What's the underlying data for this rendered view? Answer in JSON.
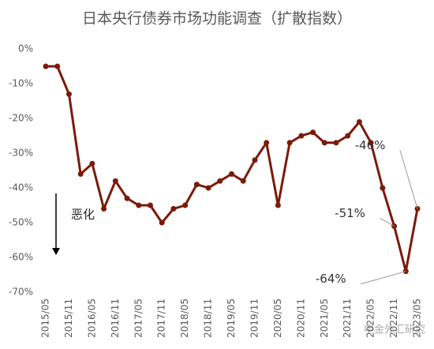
{
  "chart_data": {
    "type": "line",
    "title": "日本央行债券市场功能调查（扩散指数）",
    "categories": [
      "2015/05",
      null,
      "2015/11",
      null,
      "2016/05",
      null,
      "2016/11",
      null,
      "2017/05",
      null,
      "2017/11",
      null,
      "2018/05",
      null,
      "2018/11",
      null,
      "2019/05",
      null,
      "2019/11",
      null,
      "2020/05",
      null,
      "2020/11",
      null,
      "2021/05",
      null,
      "2021/11",
      null,
      "2022/05",
      null,
      "2022/11",
      null,
      "2023/05"
    ],
    "series": [
      {
        "name": "扩散指数",
        "color": "#7b1a0a",
        "values": [
          -5,
          -5,
          -13,
          -36,
          -33,
          -46,
          -38,
          -43,
          -45,
          -45,
          -50,
          -46,
          -45,
          -39,
          -40,
          -38,
          -36,
          -38,
          -32,
          -27,
          -45,
          -27,
          -25,
          -24,
          -27,
          -27,
          -25,
          -21,
          -27,
          -40,
          -51,
          -64,
          -46
        ],
        "value_labels": [
          null,
          null,
          null,
          null,
          null,
          null,
          null,
          null,
          null,
          null,
          null,
          null,
          null,
          null,
          null,
          null,
          null,
          null,
          null,
          null,
          null,
          null,
          null,
          null,
          null,
          null,
          null,
          null,
          null,
          null,
          "-51%",
          "-64%",
          "-46%"
        ]
      }
    ],
    "ylim": [
      -70,
      0
    ],
    "yticks": [
      {
        "value": 0,
        "label": "0%"
      },
      {
        "value": -10,
        "label": "-10%"
      },
      {
        "value": -20,
        "label": "-20%"
      },
      {
        "value": -30,
        "label": "-30%"
      },
      {
        "value": -40,
        "label": "-40%"
      },
      {
        "value": -50,
        "label": "-50%"
      },
      {
        "value": -60,
        "label": "-60%"
      },
      {
        "value": -70,
        "label": "-70%"
      }
    ],
    "grid": false,
    "annotation": "恶化",
    "watermark": "中金外汇研究"
  }
}
